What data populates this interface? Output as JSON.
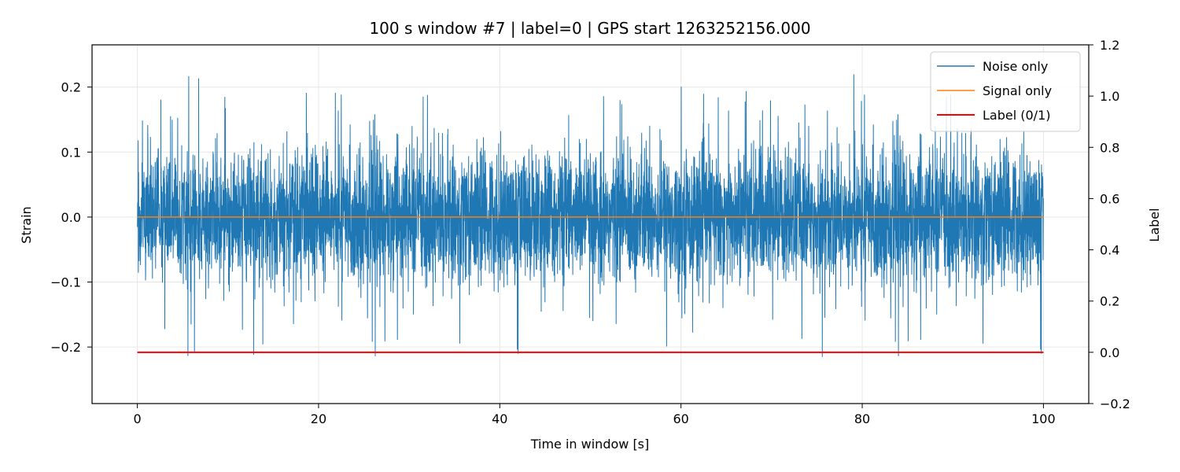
{
  "chart_data": {
    "type": "line",
    "title": "100 s window #7 | label=0 | GPS start 1263252156.000",
    "xlabel": "Time in window [s]",
    "ylabel": "Strain",
    "y2label": "Label",
    "xlim": [
      -5,
      105
    ],
    "ylim": [
      -0.287,
      0.265
    ],
    "y2lim": [
      -0.2,
      1.2
    ],
    "x_ticks": [
      0,
      20,
      40,
      60,
      80,
      100
    ],
    "y_ticks": [
      -0.2,
      -0.1,
      0.0,
      0.1,
      0.2
    ],
    "y2_ticks": [
      -0.2,
      0.0,
      0.2,
      0.4,
      0.6,
      0.8,
      1.0,
      1.2
    ],
    "x_tick_labels": [
      "0",
      "20",
      "40",
      "60",
      "80",
      "100"
    ],
    "y_tick_labels": [
      "−0.2",
      "−0.1",
      "0.0",
      "0.1",
      "0.2"
    ],
    "y2_tick_labels": [
      "−0.2",
      "0.0",
      "0.2",
      "0.4",
      "0.6",
      "0.8",
      "1.0",
      "1.2"
    ],
    "grid": true,
    "legend_position": "top-right",
    "series": [
      {
        "name": "Noise only",
        "axis": "left",
        "color": "#1f77b4",
        "x_range": [
          0,
          100
        ],
        "description_stats": {
          "typical_amplitude": 0.08,
          "max": 0.24,
          "min": -0.26
        }
      },
      {
        "name": "Signal only",
        "axis": "left",
        "color": "#ff7f0e",
        "x": [
          0,
          100
        ],
        "y": [
          0.0,
          0.0
        ]
      },
      {
        "name": "Label (0/1)",
        "axis": "right",
        "color": "#ff0000",
        "x": [
          0,
          100
        ],
        "y": [
          0,
          0
        ]
      }
    ]
  }
}
